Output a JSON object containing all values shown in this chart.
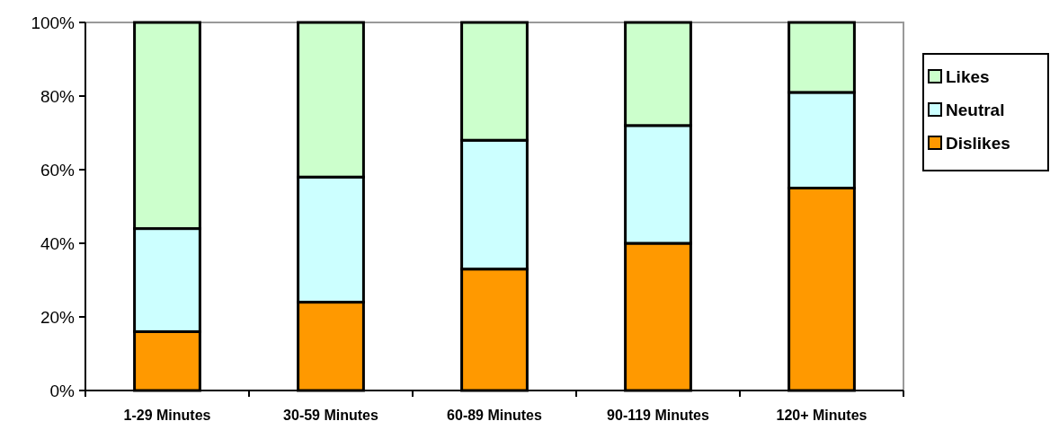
{
  "chart_data": {
    "type": "bar",
    "stacked": true,
    "categories": [
      "1-29 Minutes",
      "30-59 Minutes",
      "60-89 Minutes",
      "90-119 Minutes",
      "120+ Minutes"
    ],
    "series": [
      {
        "name": "Dislikes",
        "color": "#ff9900",
        "values": [
          16,
          24,
          33,
          40,
          55
        ]
      },
      {
        "name": "Neutral",
        "color": "#ccffff",
        "values": [
          28,
          34,
          35,
          32,
          26
        ]
      },
      {
        "name": "Likes",
        "color": "#ccffcc",
        "values": [
          56,
          42,
          32,
          28,
          19
        ]
      }
    ],
    "ylim": [
      0,
      100
    ],
    "yticks": [
      {
        "value": 0,
        "label": "0%"
      },
      {
        "value": 20,
        "label": "20%"
      },
      {
        "value": 40,
        "label": "40%"
      },
      {
        "value": 60,
        "label": "60%"
      },
      {
        "value": 80,
        "label": "80%"
      },
      {
        "value": 100,
        "label": "100%"
      }
    ],
    "grid": false,
    "legend": "right"
  }
}
